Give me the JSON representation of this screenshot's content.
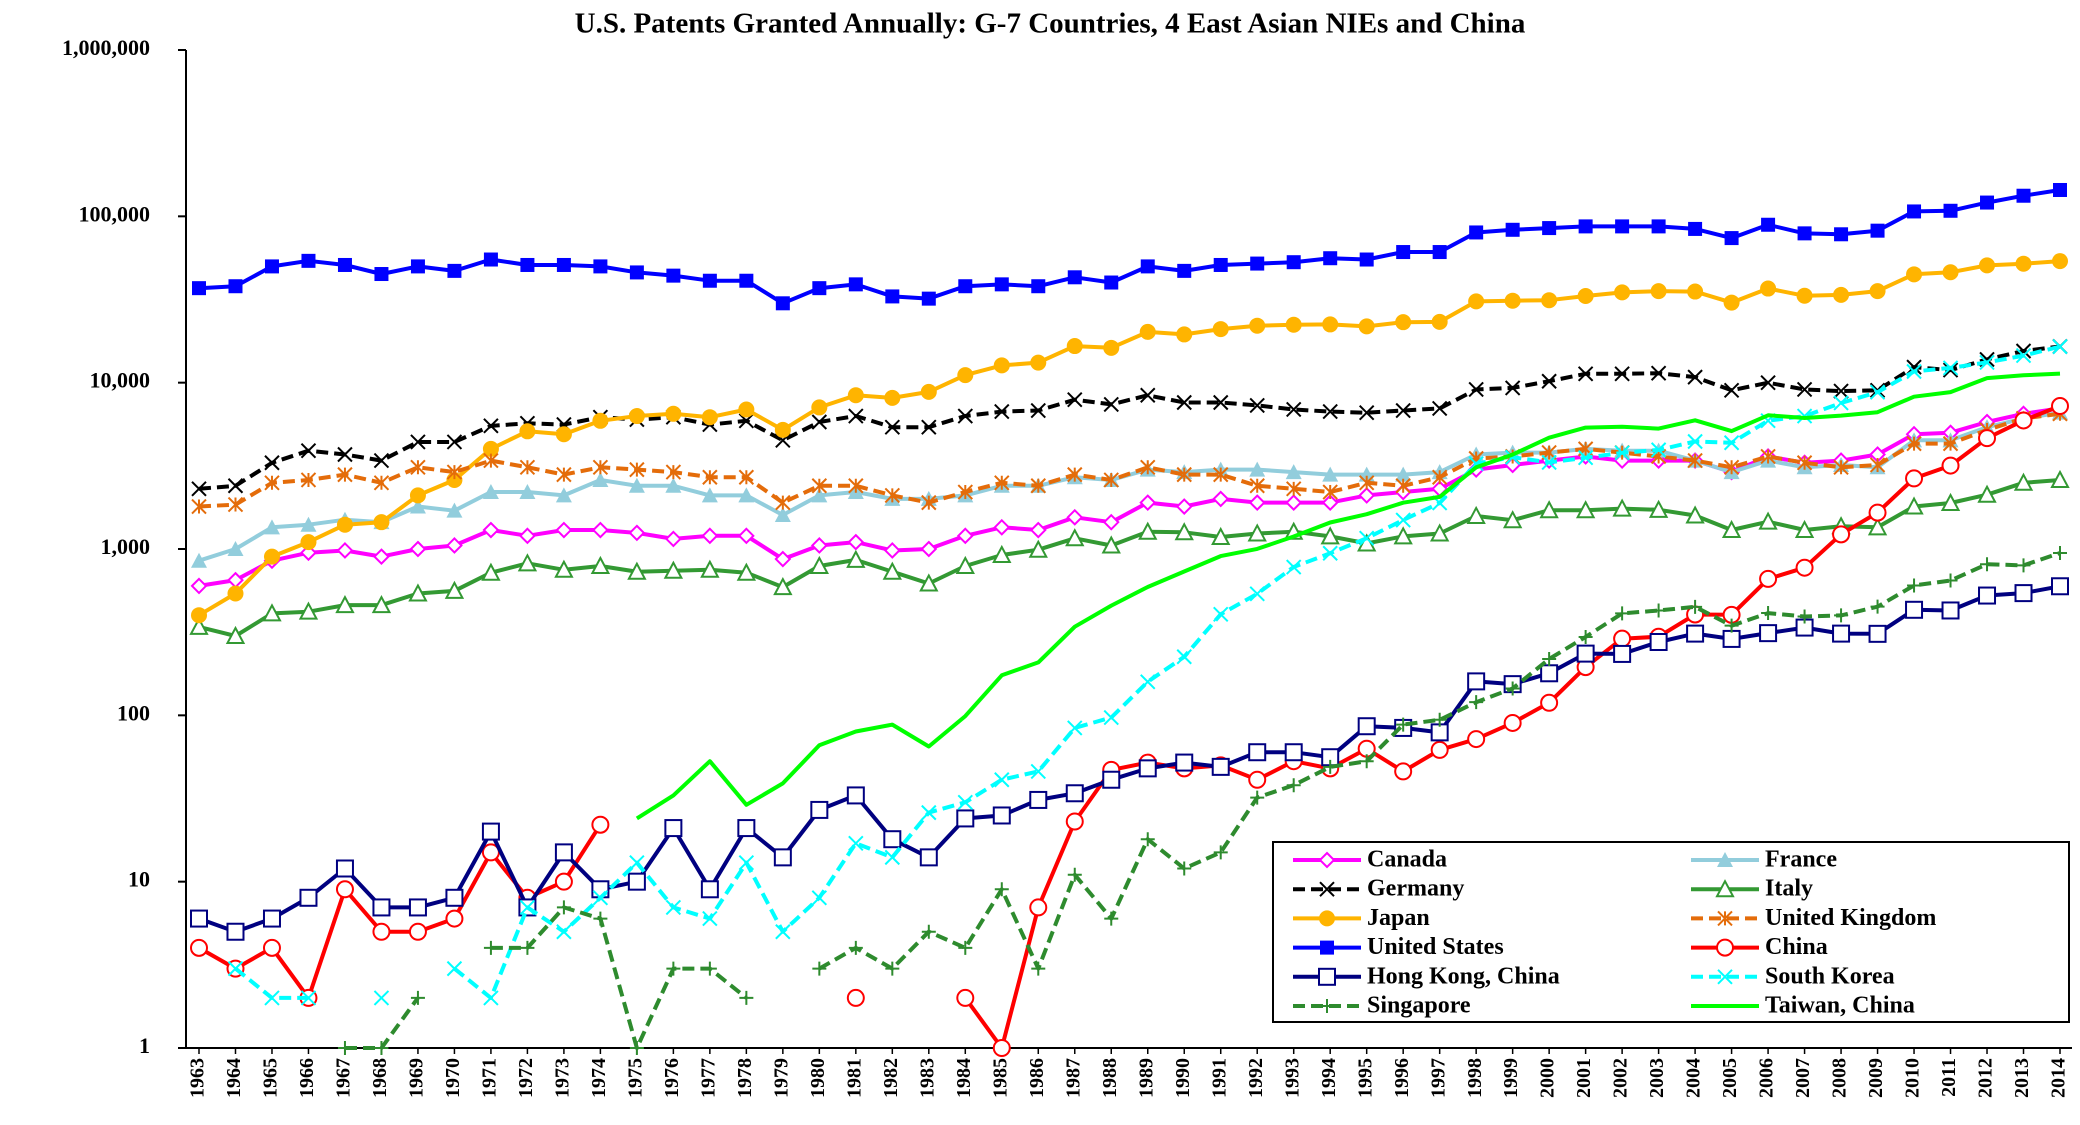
{
  "chart_data": {
    "type": "line",
    "title": "U.S. Patents Granted Annually: G-7 Countries, 4 East Asian NIEs and China",
    "categories": [
      "1963",
      "1964",
      "1965",
      "1966",
      "1967",
      "1968",
      "1969",
      "1970",
      "1971",
      "1972",
      "1973",
      "1974",
      "1975",
      "1976",
      "1977",
      "1978",
      "1979",
      "1980",
      "1981",
      "1982",
      "1983",
      "1984",
      "1985",
      "1986",
      "1987",
      "1988",
      "1989",
      "1990",
      "1991",
      "1992",
      "1993",
      "1994",
      "1995",
      "1996",
      "1997",
      "1998",
      "1999",
      "2000",
      "2001",
      "2002",
      "2003",
      "2004",
      "2005",
      "2006",
      "2007",
      "2008",
      "2009",
      "2010",
      "2011",
      "2012",
      "2013",
      "2014"
    ],
    "log_scale": true,
    "ylim": [
      1,
      1000000
    ],
    "yticks": [
      1,
      10,
      100,
      {
        "value": 1000,
        "label": "1,000"
      },
      {
        "value": 10000,
        "label": "10,000"
      },
      {
        "value": 100000,
        "label": "100,000"
      },
      {
        "value": 1000000,
        "label": "1,000,000"
      }
    ],
    "grid": false,
    "legend": "lower right",
    "series": [
      {
        "name": "Canada",
        "color": "#ff00ff",
        "marker": "diamond-open",
        "dashed": false,
        "values": [
          600,
          650,
          850,
          950,
          980,
          900,
          1000,
          1050,
          1300,
          1200,
          1300,
          1300,
          1250,
          1150,
          1200,
          1200,
          870,
          1050,
          1100,
          980,
          1000,
          1200,
          1350,
          1300,
          1550,
          1450,
          1900,
          1800,
          2000,
          1900,
          1900,
          1900,
          2100,
          2200,
          2300,
          3000,
          3200,
          3400,
          3600,
          3400,
          3400,
          3400,
          2900,
          3600,
          3300,
          3400,
          3700,
          4900,
          5000,
          5800,
          6500,
          7000
        ]
      },
      {
        "name": "France",
        "color": "#92cddc",
        "marker": "triangle",
        "dashed": false,
        "values": [
          850,
          1000,
          1350,
          1400,
          1500,
          1450,
          1800,
          1700,
          2200,
          2200,
          2100,
          2600,
          2400,
          2400,
          2100,
          2100,
          1600,
          2100,
          2200,
          2000,
          2000,
          2100,
          2400,
          2400,
          2700,
          2600,
          3000,
          2900,
          3000,
          3000,
          2900,
          2800,
          2800,
          2800,
          2900,
          3700,
          3800,
          3800,
          4000,
          3900,
          3900,
          3400,
          2900,
          3400,
          3100,
          3200,
          3100,
          4500,
          4500,
          5400,
          6100,
          6600
        ]
      },
      {
        "name": "Germany",
        "color": "#000000",
        "marker": "x",
        "dashed": true,
        "values": [
          2300,
          2400,
          3300,
          3900,
          3700,
          3400,
          4400,
          4400,
          5500,
          5700,
          5600,
          6200,
          6000,
          6200,
          5600,
          5900,
          4500,
          5800,
          6300,
          5400,
          5400,
          6300,
          6700,
          6800,
          7900,
          7400,
          8400,
          7600,
          7600,
          7300,
          6900,
          6700,
          6600,
          6800,
          7000,
          9100,
          9300,
          10200,
          11300,
          11300,
          11400,
          10800,
          9000,
          10000,
          9100,
          8900,
          9000,
          12400,
          11900,
          13800,
          15500,
          16500
        ]
      },
      {
        "name": "Italy",
        "color": "#339933",
        "marker": "triangle-open",
        "dashed": false,
        "values": [
          340,
          300,
          410,
          420,
          460,
          460,
          540,
          560,
          720,
          820,
          750,
          790,
          730,
          740,
          750,
          720,
          590,
          790,
          860,
          730,
          620,
          790,
          920,
          990,
          1160,
          1050,
          1270,
          1260,
          1180,
          1240,
          1270,
          1190,
          1080,
          1190,
          1240,
          1580,
          1490,
          1710,
          1710,
          1750,
          1720,
          1590,
          1300,
          1460,
          1300,
          1370,
          1350,
          1800,
          1890,
          2120,
          2500,
          2600
        ]
      },
      {
        "name": "Japan",
        "color": "#ffb400",
        "marker": "circle",
        "dashed": false,
        "values": [
          400,
          540,
          900,
          1100,
          1400,
          1450,
          2100,
          2600,
          4000,
          5100,
          4900,
          5900,
          6300,
          6500,
          6200,
          6900,
          5200,
          7100,
          8400,
          8100,
          8800,
          11100,
          12700,
          13200,
          16600,
          16200,
          20200,
          19500,
          21000,
          22000,
          22300,
          22400,
          21800,
          23100,
          23200,
          30800,
          31100,
          31300,
          33200,
          34900,
          35500,
          35300,
          30300,
          36800,
          33300,
          33700,
          35500,
          44800,
          46100,
          50700,
          51900,
          53800
        ]
      },
      {
        "name": "United Kingdom",
        "color": "#e46c0a",
        "marker": "asterisk",
        "dashed": true,
        "values": [
          1800,
          1850,
          2500,
          2600,
          2800,
          2500,
          3100,
          2900,
          3400,
          3100,
          2800,
          3100,
          3000,
          2900,
          2700,
          2700,
          1900,
          2400,
          2400,
          2100,
          1900,
          2200,
          2500,
          2400,
          2800,
          2600,
          3100,
          2800,
          2800,
          2400,
          2300,
          2200,
          2500,
          2400,
          2700,
          3500,
          3600,
          3800,
          4000,
          3800,
          3600,
          3400,
          3100,
          3600,
          3300,
          3100,
          3200,
          4300,
          4300,
          5200,
          6100,
          6500
        ]
      },
      {
        "name": "United States",
        "color": "#0000ff",
        "marker": "square",
        "dashed": false,
        "values": [
          37000,
          38000,
          50000,
          54000,
          51000,
          45000,
          50000,
          47000,
          55000,
          51000,
          51000,
          50000,
          46000,
          44000,
          41000,
          41000,
          30000,
          37000,
          39000,
          33000,
          32000,
          38000,
          39000,
          38000,
          43000,
          40000,
          50000,
          47000,
          51000,
          52000,
          53000,
          56000,
          55000,
          61000,
          61000,
          80000,
          83000,
          85000,
          87000,
          87000,
          87000,
          84000,
          74000,
          89000,
          79000,
          78000,
          82000,
          107000,
          108000,
          121000,
          133000,
          144000
        ]
      },
      {
        "name": "China",
        "color": "#ff0000",
        "marker": "circle-open",
        "dashed": false,
        "values": [
          4,
          3,
          4,
          2,
          9,
          5,
          5,
          6,
          15,
          8,
          10,
          22,
          null,
          null,
          null,
          null,
          null,
          null,
          2,
          null,
          null,
          2,
          1,
          7,
          23,
          47,
          52,
          48,
          50,
          41,
          53,
          48,
          63,
          46,
          62,
          72,
          90,
          119,
          195,
          289,
          297,
          404,
          402,
          661,
          772,
          1225,
          1655,
          2657,
          3174,
          4637,
          5928,
          7236
        ]
      },
      {
        "name": "Hong Kong, China",
        "color": "#000080",
        "marker": "square-open",
        "dashed": false,
        "values": [
          6,
          5,
          6,
          8,
          12,
          7,
          7,
          8,
          20,
          7,
          15,
          9,
          10,
          21,
          9,
          21,
          14,
          27,
          33,
          18,
          14,
          24,
          25,
          31,
          34,
          41,
          48,
          52,
          49,
          60,
          60,
          56,
          86,
          84,
          79,
          160,
          154,
          179,
          235,
          234,
          276,
          310,
          288,
          312,
          337,
          310,
          309,
          431,
          427,
          525,
          543,
          597
        ]
      },
      {
        "name": "South Korea",
        "color": "#00ffff",
        "marker": "x",
        "dashed": true,
        "values": [
          null,
          3,
          2,
          2,
          null,
          2,
          null,
          3,
          2,
          7,
          5,
          8,
          13,
          7,
          6,
          13,
          5,
          8,
          17,
          14,
          26,
          30,
          41,
          46,
          84,
          97,
          159,
          225,
          405,
          538,
          779,
          943,
          1161,
          1493,
          1891,
          3259,
          3562,
          3314,
          3538,
          3786,
          3944,
          4428,
          4352,
          5908,
          6295,
          7549,
          8762,
          11671,
          12262,
          13233,
          14548,
          16469
        ]
      },
      {
        "name": "Singapore",
        "color": "#2e8b2e",
        "marker": "plus",
        "dashed": true,
        "values": [
          null,
          null,
          null,
          null,
          1,
          1,
          2,
          null,
          4,
          4,
          7,
          6,
          1,
          3,
          3,
          2,
          null,
          3,
          4,
          3,
          5,
          4,
          9,
          3,
          11,
          6,
          18,
          12,
          15,
          32,
          38,
          49,
          53,
          88,
          94,
          120,
          145,
          218,
          296,
          410,
          427,
          449,
          346,
          412,
          393,
          399,
          450,
          603,
          647,
          810,
          797,
          946
        ]
      },
      {
        "name": "Taiwan, China",
        "color": "#00ff00",
        "marker": "none",
        "dashed": false,
        "values": [
          null,
          null,
          null,
          null,
          null,
          null,
          null,
          null,
          null,
          null,
          null,
          null,
          24,
          33,
          53,
          29,
          39,
          66,
          80,
          88,
          65,
          99,
          174,
          208,
          341,
          457,
          591,
          732,
          906,
          1001,
          1189,
          1443,
          1620,
          1897,
          2057,
          3100,
          3693,
          4667,
          5371,
          5431,
          5298,
          5938,
          5118,
          6361,
          6128,
          6339,
          6642,
          8238,
          8781,
          10646,
          11071,
          11332
        ]
      }
    ]
  }
}
